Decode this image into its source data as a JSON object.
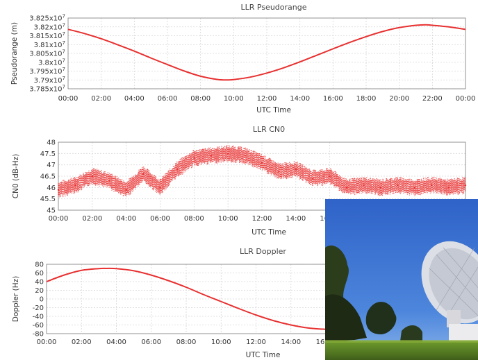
{
  "chart_data": [
    {
      "type": "line",
      "title": "LLR Pseudorange",
      "xlabel": "UTC Time",
      "ylabel": "Pseudorange (m)",
      "x_ticks": [
        "00:00",
        "02:00",
        "04:00",
        "06:00",
        "08:00",
        "10:00",
        "12:00",
        "14:00",
        "16:00",
        "18:00",
        "20:00",
        "22:00",
        "00:00"
      ],
      "y_ticks": [
        "3.785x10^7",
        "3.79x10^7",
        "3.795x10^7",
        "3.8x10^7",
        "3.805x10^7",
        "3.81x10^7",
        "3.815x10^7",
        "3.82x10^7",
        "3.825x10^7"
      ],
      "xlim": [
        0,
        24
      ],
      "ylim": [
        37850000,
        38250000
      ],
      "grid": true,
      "color": "#e83030",
      "x": [
        0,
        1,
        2,
        3,
        4,
        5,
        6,
        7,
        8,
        9,
        9.6,
        10,
        11,
        12,
        13,
        14,
        15,
        16,
        17,
        18,
        19,
        20,
        21,
        21.6,
        22,
        23,
        24
      ],
      "y": [
        38186000,
        38162000,
        38133000,
        38099000,
        38063000,
        38024000,
        37987000,
        37951000,
        37921000,
        37903000,
        37900000,
        37902000,
        37916000,
        37939000,
        37968000,
        38002000,
        38039000,
        38076000,
        38112000,
        38145000,
        38174000,
        38196000,
        38209000,
        38212000,
        38209000,
        38200000,
        38186000
      ]
    },
    {
      "type": "scatter",
      "title": "LLR CN0",
      "xlabel": "UTC Time",
      "ylabel": "CN0 (dB-Hz)",
      "x_ticks": [
        "00:00",
        "02:00",
        "04:00",
        "06:00",
        "08:00",
        "10:00",
        "12:00",
        "14:00",
        "16:00"
      ],
      "y_ticks": [
        "45",
        "45.5",
        "46",
        "46.5",
        "47",
        "47.5",
        "48"
      ],
      "xlim": [
        0,
        24
      ],
      "ylim": [
        45,
        48
      ],
      "grid": true,
      "color": "#e83030",
      "x": [
        0,
        1,
        2,
        3,
        4,
        5,
        6,
        7,
        8,
        9,
        10,
        11,
        12,
        13,
        14,
        15,
        16,
        17,
        18,
        19,
        20,
        21,
        22,
        23,
        24
      ],
      "y": [
        45.9,
        46.1,
        46.5,
        46.3,
        45.9,
        46.6,
        46.0,
        46.8,
        47.3,
        47.4,
        47.5,
        47.4,
        47.1,
        46.7,
        46.8,
        46.4,
        46.5,
        46.0,
        46.1,
        46.0,
        46.1,
        46.0,
        46.1,
        46.0,
        46.1
      ]
    },
    {
      "type": "line",
      "title": "LLR Doppler",
      "xlabel": "UTC Time",
      "ylabel": "Doppler (Hz)",
      "x_ticks": [
        "00:00",
        "02:00",
        "04:00",
        "06:00",
        "08:00",
        "10:00",
        "12:00",
        "14:00",
        "16:00"
      ],
      "y_ticks": [
        "-80",
        "-60",
        "-40",
        "-20",
        "0",
        "20",
        "40",
        "60",
        "80"
      ],
      "xlim": [
        0,
        24
      ],
      "ylim": [
        -80,
        80
      ],
      "grid": true,
      "color": "#e83030",
      "x": [
        0,
        1,
        2,
        3,
        3.4,
        4,
        5,
        6,
        7,
        8,
        9,
        10,
        11,
        12,
        13,
        14,
        15,
        16,
        17
      ],
      "y": [
        40,
        55,
        66,
        70,
        70.5,
        70,
        65,
        55,
        42,
        27,
        10,
        -6,
        -22,
        -37,
        -50,
        -60,
        -67,
        -70,
        -71
      ]
    }
  ]
}
